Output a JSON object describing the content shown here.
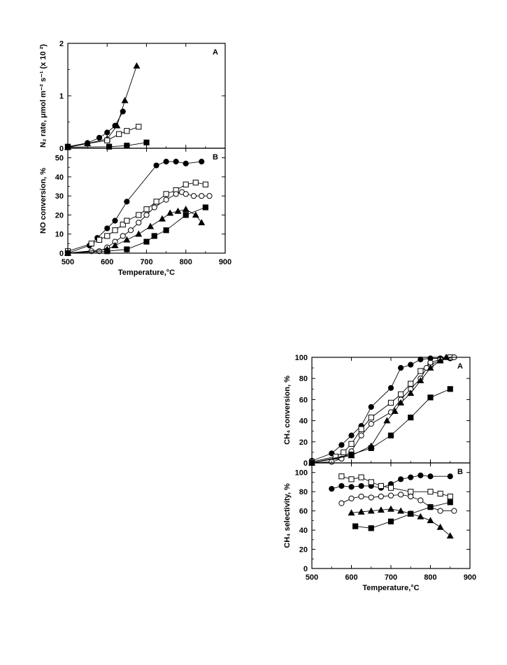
{
  "chart_data": [
    {
      "type": "scatter",
      "panel": "A",
      "ylabel": "N₂ rate, μmol m⁻² s⁻¹ (x 10 ²)",
      "ylim": [
        0,
        2
      ],
      "xlim": [
        500,
        900
      ],
      "yticks": [
        "0",
        "1",
        "2"
      ],
      "series": [
        {
          "marker": "triangle-filled",
          "x": [
            500,
            550,
            600,
            625,
            645,
            675
          ],
          "y": [
            0.02,
            0.09,
            0.18,
            0.43,
            0.91,
            1.57
          ]
        },
        {
          "marker": "circle-filled",
          "x": [
            500,
            550,
            580,
            600,
            620,
            640
          ],
          "y": [
            0.03,
            0.1,
            0.2,
            0.3,
            0.43,
            0.7
          ]
        },
        {
          "marker": "square-open",
          "x": [
            500,
            600,
            630,
            650,
            680
          ],
          "y": [
            0.03,
            0.15,
            0.27,
            0.33,
            0.41
          ]
        },
        {
          "marker": "square-filled",
          "x": [
            500,
            605,
            650,
            700
          ],
          "y": [
            0.02,
            0.03,
            0.05,
            0.11
          ]
        }
      ]
    },
    {
      "type": "scatter",
      "panel": "B",
      "ylabel": "NO conversion, %",
      "xlabel": "Temperature,°C",
      "ylim": [
        0,
        55
      ],
      "xlim": [
        500,
        900
      ],
      "yticks": [
        "0",
        "10",
        "20",
        "30",
        "40",
        "50"
      ],
      "xticks": [
        "500",
        "600",
        "700",
        "800",
        "900"
      ],
      "series": [
        {
          "marker": "circle-filled",
          "x": [
            500,
            555,
            575,
            600,
            620,
            650,
            725,
            750,
            775,
            800,
            840
          ],
          "y": [
            0,
            4,
            8,
            13,
            17,
            27,
            46,
            48,
            48,
            47,
            48
          ]
        },
        {
          "marker": "square-open",
          "x": [
            500,
            560,
            580,
            600,
            620,
            640,
            650,
            680,
            700,
            725,
            750,
            775,
            800,
            825,
            850
          ],
          "y": [
            1,
            5,
            7,
            9,
            12,
            15,
            17,
            20,
            23,
            27,
            31,
            33,
            36,
            37,
            36
          ]
        },
        {
          "marker": "circle-open",
          "x": [
            500,
            560,
            580,
            600,
            620,
            640,
            660,
            680,
            700,
            720,
            750,
            775,
            790,
            800,
            820,
            840,
            860
          ],
          "y": [
            0,
            1,
            1,
            3,
            6,
            9,
            12,
            16,
            20,
            24,
            28,
            31,
            32,
            31,
            30,
            30,
            30
          ]
        },
        {
          "marker": "triangle-filled",
          "x": [
            500,
            600,
            620,
            650,
            680,
            710,
            740,
            760,
            780,
            800,
            825,
            840
          ],
          "y": [
            0,
            2,
            4,
            7,
            10,
            14,
            18,
            21,
            22,
            23,
            20,
            16
          ]
        },
        {
          "marker": "square-filled",
          "x": [
            500,
            600,
            650,
            700,
            720,
            750,
            800,
            850
          ],
          "y": [
            0,
            1,
            2,
            6,
            9,
            12,
            20,
            24
          ]
        }
      ]
    },
    {
      "type": "scatter",
      "panel": "A",
      "ylabel": "CH₄ conversion, %",
      "ylim": [
        0,
        100
      ],
      "xlim": [
        500,
        900
      ],
      "yticks": [
        "0",
        "20",
        "40",
        "60",
        "80",
        "100"
      ],
      "series": [
        {
          "marker": "circle-filled",
          "x": [
            500,
            550,
            575,
            600,
            625,
            650,
            700,
            725,
            750,
            775,
            800,
            825,
            850
          ],
          "y": [
            2,
            9,
            17,
            26,
            35,
            53,
            71,
            90,
            93,
            98,
            99,
            99,
            99
          ]
        },
        {
          "marker": "square-open",
          "x": [
            500,
            560,
            580,
            600,
            625,
            650,
            700,
            725,
            750,
            775,
            800,
            825,
            850
          ],
          "y": [
            1,
            6,
            10,
            18,
            32,
            43,
            57,
            65,
            75,
            87,
            93,
            97,
            100
          ]
        },
        {
          "marker": "circle-open",
          "x": [
            500,
            550,
            575,
            600,
            625,
            650,
            700,
            725,
            750,
            775,
            790,
            800,
            825,
            860
          ],
          "y": [
            0,
            1,
            4,
            11,
            26,
            37,
            48,
            60,
            70,
            80,
            90,
            95,
            98,
            100
          ]
        },
        {
          "marker": "triangle-filled",
          "x": [
            500,
            600,
            650,
            690,
            710,
            725,
            750,
            775,
            800,
            825,
            840
          ],
          "y": [
            0,
            7,
            16,
            40,
            49,
            57,
            66,
            78,
            90,
            97,
            100
          ]
        },
        {
          "marker": "square-filled",
          "x": [
            500,
            600,
            650,
            700,
            750,
            800,
            850
          ],
          "y": [
            0,
            8,
            14,
            26,
            43,
            62,
            70
          ]
        }
      ]
    },
    {
      "type": "scatter",
      "panel": "B",
      "ylabel": "CH₄ selectivity, %",
      "xlabel": "Temperature,°C",
      "ylim": [
        0,
        110
      ],
      "xlim": [
        500,
        900
      ],
      "yticks": [
        "0",
        "20",
        "40",
        "60",
        "80",
        "100"
      ],
      "xticks": [
        "500",
        "600",
        "700",
        "800",
        "900"
      ],
      "series": [
        {
          "marker": "circle-filled",
          "x": [
            550,
            575,
            600,
            625,
            650,
            675,
            700,
            725,
            750,
            775,
            800,
            850
          ],
          "y": [
            83,
            86,
            85,
            86,
            86,
            84,
            88,
            93,
            95,
            97,
            96,
            96
          ]
        },
        {
          "marker": "square-open",
          "x": [
            575,
            600,
            625,
            650,
            675,
            700,
            750,
            800,
            825,
            850
          ],
          "y": [
            96,
            93,
            95,
            90,
            86,
            84,
            80,
            80,
            78,
            75
          ]
        },
        {
          "marker": "circle-open",
          "x": [
            575,
            600,
            625,
            650,
            675,
            700,
            725,
            750,
            775,
            800,
            825,
            860
          ],
          "y": [
            68,
            73,
            75,
            74,
            75,
            76,
            77,
            75,
            71,
            64,
            60,
            60
          ]
        },
        {
          "marker": "triangle-filled",
          "x": [
            600,
            625,
            650,
            675,
            700,
            725,
            750,
            775,
            800,
            825,
            850
          ],
          "y": [
            58,
            59,
            60,
            61,
            62,
            60,
            57,
            54,
            50,
            43,
            34
          ]
        },
        {
          "marker": "square-filled",
          "x": [
            610,
            650,
            700,
            750,
            800,
            850
          ],
          "y": [
            44,
            42,
            49,
            57,
            64,
            69
          ]
        }
      ]
    }
  ]
}
